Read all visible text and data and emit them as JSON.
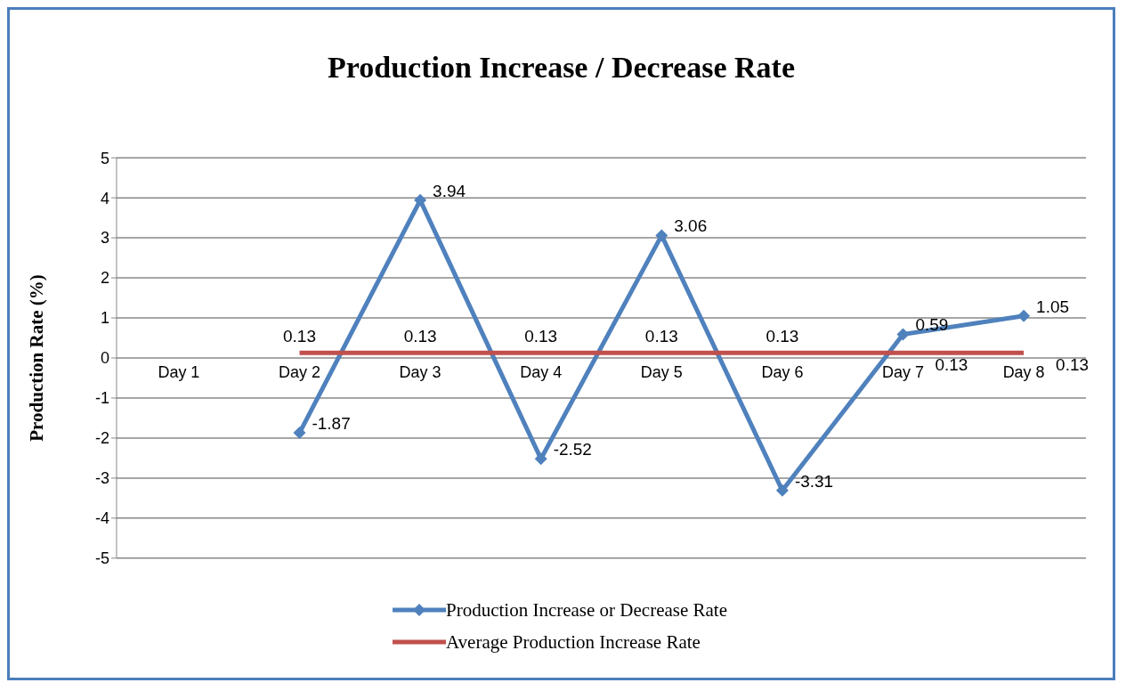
{
  "chart_data": {
    "type": "line",
    "title": "Production Increase / Decrease Rate",
    "ylabel": "Production Rate (%)",
    "categories": [
      "Day 1",
      "Day 2",
      "Day 3",
      "Day 4",
      "Day 5",
      "Day 6",
      "Day 7",
      "Day 8"
    ],
    "series": [
      {
        "name": "Production Increase or Decrease Rate",
        "color": "#4f81bd",
        "marker": "diamond",
        "values": [
          null,
          -1.87,
          3.94,
          -2.52,
          3.06,
          -3.31,
          0.59,
          1.05
        ]
      },
      {
        "name": "Average Production Increase Rate",
        "color": "#c0504d",
        "marker": "none",
        "values": [
          null,
          0.13,
          0.13,
          0.13,
          0.13,
          0.13,
          0.13,
          0.13
        ]
      }
    ],
    "ylim": [
      -5,
      5
    ],
    "yticks": [
      -5,
      -4,
      -3,
      -2,
      -1,
      0,
      1,
      2,
      3,
      4,
      5
    ],
    "grid": "y",
    "legend": "bottom",
    "data_labels": true
  }
}
